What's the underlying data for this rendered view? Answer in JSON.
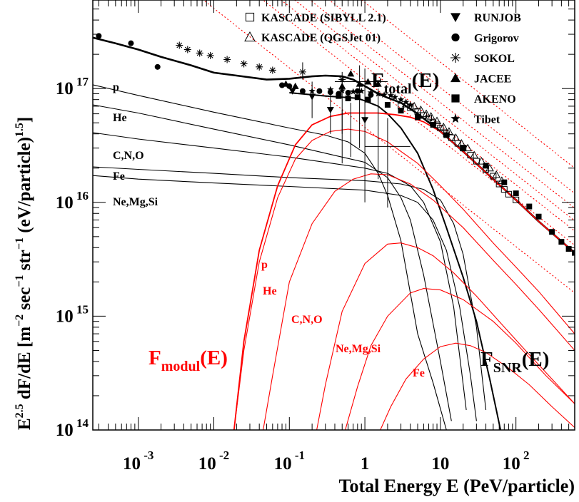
{
  "chart_data": {
    "type": "line",
    "title": "",
    "xlabel": "Total Energy E (PeV/particle)",
    "ylabel": {
      "base": "E",
      "sup1": "2.5",
      "mid": " dF/dE [m",
      "sup2": "−2",
      "mid2": " sec",
      "sup3": "−1",
      "mid3": " str",
      "sup4": "−1",
      "mid4": " (eV/particle)",
      "sup5": "1.5",
      "end": "]"
    },
    "x_scale": "log",
    "y_scale": "log",
    "xlim": [
      0.00025,
      600
    ],
    "ylim": [
      100000000000000.0,
      6e+17
    ],
    "x_ticks": [
      {
        "value": 0.001,
        "base": "10",
        "exp": "-3"
      },
      {
        "value": 0.01,
        "base": "10",
        "exp": "-2"
      },
      {
        "value": 0.1,
        "base": "10",
        "exp": "-1"
      },
      {
        "value": 1,
        "base": "1",
        "exp": ""
      },
      {
        "value": 10,
        "base": "10",
        "exp": ""
      },
      {
        "value": 100,
        "base": "10",
        "exp": "2"
      }
    ],
    "y_ticks": [
      {
        "value": 100000000000000.0,
        "base": "10",
        "exp": "14"
      },
      {
        "value": 1000000000000000.0,
        "base": "10",
        "exp": "15"
      },
      {
        "value": 1e+16,
        "base": "10",
        "exp": "16"
      },
      {
        "value": 1e+17,
        "base": "10",
        "exp": "17"
      }
    ],
    "legend": {
      "placement": "top-right",
      "entries": [
        {
          "label": "KASCADE (SIBYLL 2.1)",
          "marker": "open-square"
        },
        {
          "label": "KASCADE (QGSJet 01)",
          "marker": "open-triangle"
        },
        {
          "label": "RUNJOB",
          "marker": "down-triangle"
        },
        {
          "label": "Grigorov",
          "marker": "circle"
        },
        {
          "label": "SOKOL",
          "marker": "asterisk"
        },
        {
          "label": "JACEE",
          "marker": "triangle"
        },
        {
          "label": "AKENO",
          "marker": "square"
        },
        {
          "label": "Tibet",
          "marker": "star"
        }
      ]
    },
    "annotations": {
      "f_total": {
        "base": "F",
        "sub": "total",
        "rest": "(E)"
      },
      "f_modul": {
        "base": "F",
        "sub": "modul",
        "rest": "(E)"
      },
      "f_snr": {
        "base": "F",
        "sub": "SNR",
        "rest": "(E)"
      },
      "black_labels": [
        "p",
        "He",
        "C,N,O",
        "Fe",
        "Ne,Mg,Si"
      ],
      "red_labels": [
        "p",
        "He",
        "C,N,O",
        "Ne,Mg,Si",
        "Fe"
      ]
    },
    "series": [
      {
        "role": "total",
        "color": "#000000",
        "x": [
          0.00025,
          0.0005,
          0.001,
          0.002,
          0.005,
          0.01,
          0.02,
          0.05,
          0.1,
          0.2,
          0.3,
          0.5,
          0.7,
          1,
          1.5,
          2,
          3,
          5,
          10,
          20,
          50,
          100,
          200,
          600
        ],
        "y": [
          2.8e+17,
          2.5e+17,
          2.2e+17,
          1.9e+17,
          1.6e+17,
          1.38e+17,
          1.3e+17,
          1.2e+17,
          1.22e+17,
          1.28e+17,
          1.3e+17,
          1.28e+17,
          1.2e+17,
          1.05e+17,
          9e+16,
          8.3e+16,
          7.5e+16,
          6e+16,
          4.2e+16,
          2.8e+16,
          1.6e+16,
          1.05e+16,
          6800000000000000.0,
          3600000000000000.0
        ]
      },
      {
        "role": "black-component",
        "label": "p",
        "color": "#000000",
        "x": [
          0.00025,
          0.001,
          0.01,
          0.1,
          0.3,
          0.6,
          1,
          1.5,
          2,
          3,
          5,
          8,
          12
        ],
        "y": [
          1.08e+17,
          8.7e+16,
          6.2e+16,
          4.5e+16,
          3.9e+16,
          3.4e+16,
          2.7e+16,
          1.8e+16,
          1.15e+16,
          4600000000000000.0,
          700000000000000.0,
          260000000000000.0,
          100000000000000.0
        ]
      },
      {
        "role": "black-component",
        "label": "He",
        "color": "#000000",
        "x": [
          0.00025,
          0.001,
          0.01,
          0.1,
          0.5,
          1,
          2,
          3,
          4,
          6,
          10,
          14
        ],
        "y": [
          7.2e+16,
          6.1e+16,
          4.4e+16,
          3.2e+16,
          2.5e+16,
          2.25e+16,
          1.65e+16,
          1.1e+16,
          7000000000000000.0,
          2300000000000000.0,
          400000000000000.0,
          120000000000000.0
        ]
      },
      {
        "role": "black-component",
        "label": "C,N,O",
        "color": "#000000",
        "x": [
          0.00025,
          0.001,
          0.01,
          0.1,
          1,
          2,
          4,
          6,
          10,
          15,
          22
        ],
        "y": [
          4.1e+16,
          3.6e+16,
          3e+16,
          2.5e+16,
          2e+16,
          1.8e+16,
          1.4e+16,
          1e+16,
          4500000000000000.0,
          1200000000000000.0,
          150000000000000.0
        ]
      },
      {
        "role": "black-component",
        "label": "Fe",
        "color": "#000000",
        "x": [
          0.00025,
          0.001,
          0.01,
          0.1,
          1,
          3,
          6,
          10,
          15,
          20,
          30,
          40
        ],
        "y": [
          2.05e+16,
          1.95e+16,
          1.8e+16,
          1.65e+16,
          1.55e+16,
          1.45e+16,
          1.3e+16,
          1.05e+16,
          6500000000000000.0,
          3500000000000000.0,
          800000000000000.0,
          150000000000000.0
        ]
      },
      {
        "role": "black-component",
        "label": "Ne,Mg,Si",
        "color": "#000000",
        "x": [
          0.00025,
          0.001,
          0.01,
          0.1,
          1,
          3,
          5,
          8,
          12,
          18,
          25,
          30
        ],
        "y": [
          1.72e+16,
          1.6e+16,
          1.48e+16,
          1.38e+16,
          1.28e+16,
          1.15e+16,
          1e+16,
          7000000000000000.0,
          3800000000000000.0,
          1200000000000000.0,
          300000000000000.0,
          120000000000000.0
        ]
      },
      {
        "role": "snr-total",
        "color": "#000000",
        "x": [
          0.1,
          0.3,
          0.5,
          0.8,
          1,
          1.5,
          2,
          3,
          5,
          8,
          12,
          20,
          30,
          45,
          55,
          70
        ],
        "y": [
          9.2e+16,
          8.6e+16,
          8.4e+16,
          8.2e+16,
          7.8e+16,
          7e+16,
          6e+16,
          4.5e+16,
          2.7e+16,
          1.3e+16,
          6000000000000000.0,
          2200000000000000.0,
          900000000000000.0,
          280000000000000.0,
          150000000000000.0,
          70000000000000.0
        ]
      },
      {
        "role": "red-modulated",
        "label": "total",
        "color": "#ff0000",
        "x": [
          0.0185,
          0.025,
          0.04,
          0.07,
          0.12,
          0.2,
          0.35,
          0.6,
          1,
          1.5,
          2.5,
          4,
          6,
          10,
          20,
          50,
          100,
          200,
          600
        ],
        "y": [
          100000000000000.0,
          600000000000000.0,
          3800000000000000.0,
          1.4e+16,
          3.2e+16,
          4.8e+16,
          5.7e+16,
          6.1e+16,
          6.1e+16,
          6.1e+16,
          5.9e+16,
          5.6e+16,
          5.1e+16,
          4.2e+16,
          2.8e+16,
          1.6e+16,
          1.05e+16,
          6800000000000000.0,
          3600000000000000.0
        ]
      },
      {
        "role": "red-modulated",
        "label": "p",
        "color": "#ff0000",
        "x": [
          0.0185,
          0.025,
          0.04,
          0.07,
          0.12,
          0.2,
          0.35,
          0.6,
          1,
          2,
          5,
          10,
          20,
          50,
          100,
          200,
          600
        ],
        "y": [
          100000000000000.0,
          500000000000000.0,
          3000000000000000.0,
          1.1e+16,
          2.4e+16,
          3.5e+16,
          4.2e+16,
          4.4e+16,
          4.2e+16,
          3.4e+16,
          2.2e+16,
          1.4e+16,
          8700000000000000.0,
          4400000000000000.0,
          2700000000000000.0,
          1650000000000000.0,
          700000000000000.0
        ]
      },
      {
        "role": "red-modulated",
        "label": "He",
        "color": "#ff0000",
        "x": [
          0.045,
          0.06,
          0.1,
          0.2,
          0.4,
          0.7,
          1.2,
          2,
          4,
          8,
          20,
          50,
          100,
          200,
          600
        ],
        "y": [
          100000000000000.0,
          300000000000000.0,
          2000000000000000.0,
          6500000000000000.0,
          1.25e+16,
          1.6e+16,
          1.78e+16,
          1.75e+16,
          1.45e+16,
          1.05e+16,
          6000000000000000.0,
          3100000000000000.0,
          1900000000000000.0,
          1150000000000000.0,
          500000000000000.0
        ]
      },
      {
        "role": "red-modulated",
        "label": "C,N,O",
        "color": "#ff0000",
        "x": [
          0.23,
          0.3,
          0.5,
          1,
          2,
          3,
          5,
          8,
          15,
          30,
          60,
          150,
          300,
          600
        ],
        "y": [
          100000000000000.0,
          250000000000000.0,
          1100000000000000.0,
          2900000000000000.0,
          4300000000000000.0,
          4400000000000000.0,
          4000000000000000.0,
          3400000000000000.0,
          2400000000000000.0,
          1500000000000000.0,
          900000000000000.0,
          460000000000000.0,
          280000000000000.0,
          170000000000000.0
        ]
      },
      {
        "role": "red-modulated",
        "label": "Ne,Mg,Si",
        "color": "#ff0000",
        "x": [
          0.55,
          0.8,
          1.2,
          2,
          4,
          6,
          10,
          20,
          50,
          100,
          250,
          600
        ],
        "y": [
          100000000000000.0,
          240000000000000.0,
          550000000000000.0,
          1000000000000000.0,
          1600000000000000.0,
          1750000000000000.0,
          1700000000000000.0,
          1400000000000000.0,
          900000000000000.0,
          580000000000000.0,
          300000000000000.0,
          170000000000000.0
        ]
      },
      {
        "role": "red-modulated",
        "label": "Fe",
        "color": "#ff0000",
        "x": [
          1.6,
          2.2,
          3.5,
          6,
          10,
          16,
          25,
          40,
          80,
          150,
          300,
          600
        ],
        "y": [
          100000000000000.0,
          160000000000000.0,
          280000000000000.0,
          420000000000000.0,
          540000000000000.0,
          580000000000000.0,
          550000000000000.0,
          480000000000000.0,
          350000000000000.0,
          250000000000000.0,
          160000000000000.0,
          105000000000000.0
        ]
      },
      {
        "role": "red-dotted-guide",
        "color": "#ff0000",
        "dotted": true,
        "x": [
          0.00025,
          600
        ],
        "y": [
          4.4e+19,
          2e+16
        ]
      },
      {
        "role": "red-dotted-guide",
        "color": "#ff0000",
        "dotted": true,
        "x": [
          0.00025,
          600
        ],
        "y": [
          2.6e+19,
          1.2e+16
        ]
      },
      {
        "role": "red-dotted-guide",
        "color": "#ff0000",
        "dotted": true,
        "x": [
          0.00025,
          600
        ],
        "y": [
          1.9e+19,
          8900000000000000.0
        ]
      },
      {
        "role": "red-dotted-guide",
        "color": "#ff0000",
        "dotted": true,
        "x": [
          0.00025,
          600
        ],
        "y": [
          1.5e+19,
          6900000000000000.0
        ]
      },
      {
        "role": "red-dotted-guide",
        "color": "#ff0000",
        "dotted": true,
        "x": [
          0.00025,
          600
        ],
        "y": [
          1.2e+19,
          5600000000000000.0
        ]
      },
      {
        "role": "red-dotted-guide",
        "color": "#ff0000",
        "dotted": true,
        "x": [
          0.00025,
          600
        ],
        "y": [
          9e+18,
          4200000000000000.0
        ]
      },
      {
        "role": "red-dotted-guide",
        "color": "#ff0000",
        "dotted": true,
        "x": [
          0.00025,
          600
        ],
        "y": [
          3.5e+18,
          1600000000000000.0
        ]
      }
    ],
    "points": [
      {
        "set": "Grigorov",
        "marker": "circle",
        "x": [
          0.0003,
          0.0008,
          0.0018,
          0.08,
          0.1,
          0.15,
          0.25,
          0.35,
          0.45,
          0.6,
          0.8,
          1.2
        ],
        "y": [
          2.9e+17,
          2.5e+17,
          1.55e+17,
          1.07e+17,
          1.05e+17,
          9.5e+16,
          9.5e+16,
          9.3e+16,
          9e+16,
          9.2e+16,
          9.5e+16,
          8.8e+16
        ]
      },
      {
        "set": "SOKOL",
        "marker": "asterisk",
        "x": [
          0.0035,
          0.0045,
          0.0065,
          0.009,
          0.015,
          0.025,
          0.04,
          0.06,
          0.15,
          0.5
        ],
        "y": [
          2.4e+17,
          2.2e+17,
          2.05e+17,
          1.95e+17,
          1.8e+17,
          1.65e+17,
          1.55e+17,
          1.45e+17,
          1.4e+17,
          1.2e+17
        ]
      },
      {
        "set": "RUNJOB",
        "marker": "down-triangle",
        "x": [
          0.11,
          0.2,
          0.35,
          1.0
        ],
        "y": [
          9.5e+16,
          8.5e+16,
          6.5e+16,
          5.3e+16
        ]
      },
      {
        "set": "JACEE",
        "marker": "triangle",
        "x": [
          0.09,
          0.12,
          0.5,
          0.65,
          0.85,
          1.1,
          1.5
        ],
        "y": [
          1.1e+17,
          1.05e+17,
          1.05e+17,
          1.35e+17,
          1.1e+17,
          1.15e+17,
          1.1e+17
        ]
      },
      {
        "set": "Tibet",
        "marker": "star",
        "x": [
          0.2,
          0.35,
          0.5,
          0.7,
          0.9,
          1.2,
          1.5,
          1.8,
          2.2,
          2.5,
          3,
          3.5,
          4
        ],
        "y": [
          9.5e+16,
          9.8e+16,
          9.6e+16,
          9.4e+16,
          9.5e+16,
          9.2e+16,
          9e+16,
          8.8e+16,
          8.7e+16,
          8.4e+16,
          8e+16,
          7.6e+16,
          7.2e+16
        ]
      },
      {
        "set": "AKENO",
        "marker": "square",
        "x": [
          0.45,
          0.6,
          0.8,
          1.1,
          2,
          3,
          5,
          8,
          12,
          20,
          40,
          70,
          100,
          150,
          200,
          300,
          400,
          500,
          600
        ],
        "y": [
          8.6e+16,
          8.2e+16,
          8.4e+16,
          8e+16,
          7.2e+16,
          6.4e+16,
          5.6e+16,
          4.8e+16,
          3.9e+16,
          3e+16,
          2.1e+16,
          1.5e+16,
          1.2e+16,
          9200000000000000.0,
          7500000000000000.0,
          5500000000000000.0,
          4500000000000000.0,
          3900000000000000.0,
          3600000000000000.0
        ]
      },
      {
        "set": "KASCADE (SIBYLL 2.1)",
        "marker": "open-square",
        "x": [
          3,
          4,
          5,
          6,
          7,
          8,
          9,
          10,
          12,
          14,
          17,
          20,
          25,
          30,
          40,
          50,
          60,
          70,
          80,
          100
        ],
        "y": [
          7e+16,
          6.8e+16,
          6.3e+16,
          5.8e+16,
          5.5e+16,
          5e+16,
          4.8e+16,
          4.5e+16,
          4e+16,
          3.7e+16,
          3.3e+16,
          3e+16,
          2.6e+16,
          2.3e+16,
          1.95e+16,
          1.7e+16,
          1.45e+16,
          1.3e+16,
          1.18e+16,
          1.05e+16
        ]
      },
      {
        "set": "KASCADE (QGSJet 01)",
        "marker": "open-triangle",
        "x": [
          3.5,
          4.5,
          5.5,
          6.5,
          7.5,
          9,
          11,
          13,
          16,
          19,
          23,
          28,
          35,
          45,
          55,
          65
        ],
        "y": [
          7.3e+16,
          7e+16,
          6.5e+16,
          6e+16,
          5.7e+16,
          5.2e+16,
          4.6e+16,
          4.2e+16,
          3.7e+16,
          3.3e+16,
          3e+16,
          2.6e+16,
          2.3e+16,
          2e+16,
          1.75e+16,
          1.55e+16
        ]
      }
    ],
    "error_bars": [
      {
        "x": 0.15,
        "y": 1.4e+17,
        "ylo": 1.2e+17,
        "yhi": 1.7e+17,
        "xlo": 0.15,
        "xhi": 0.15
      },
      {
        "x": 0.2,
        "y": 8.5e+16,
        "ylo": 5.5e+16,
        "yhi": 1.15e+17,
        "xlo": 0.2,
        "xhi": 0.2
      },
      {
        "x": 0.35,
        "y": 6.5e+16,
        "ylo": 4e+16,
        "yhi": 9e+16,
        "xlo": 0.35,
        "xhi": 0.35
      },
      {
        "x": 0.5,
        "y": 9.5e+16,
        "ylo": 4e+16,
        "yhi": 1.4e+17,
        "xlo": 0.5,
        "xhi": 0.5
      },
      {
        "x": 0.5,
        "y": 3.5e+16,
        "ylo": 2.2e+16,
        "yhi": 6.5e+16,
        "xlo": 0.5,
        "xhi": 0.5
      },
      {
        "x": 0.65,
        "y": 4.5e+16,
        "ylo": 2.5e+16,
        "yhi": 7.5e+16,
        "xlo": 0.65,
        "xhi": 0.65
      },
      {
        "x": 0.85,
        "y": 1.2e+17,
        "ylo": 3e+16,
        "yhi": 1.6e+17,
        "xlo": 0.85,
        "xhi": 0.85
      },
      {
        "x": 1.0,
        "y": 5.3e+16,
        "ylo": 1e+16,
        "yhi": 1.5e+17,
        "xlo": 1.0,
        "xhi": 1.0
      },
      {
        "x": 1.1,
        "y": 1.15e+17,
        "ylo": 1.15e+17,
        "yhi": 1.15e+17,
        "xlo": 0.4,
        "xhi": 2.0
      },
      {
        "x": 1.5,
        "y": 4.5e+16,
        "ylo": 1.6e+16,
        "yhi": 1e+17,
        "xlo": 1.5,
        "xhi": 1.5
      },
      {
        "x": 2.0,
        "y": 3.1e+16,
        "ylo": 9000000000000000.0,
        "yhi": 5.5e+16,
        "xlo": 1.0,
        "xhi": 4.0
      }
    ]
  }
}
